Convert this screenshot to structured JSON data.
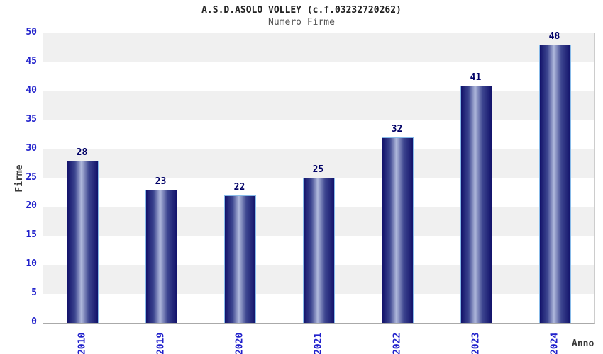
{
  "chart_data": {
    "type": "bar",
    "title": "A.S.D.ASOLO VOLLEY (c.f.03232720262)",
    "subtitle": "Numero Firme",
    "xlabel": "Anno",
    "ylabel": "Firme",
    "categories": [
      "2010",
      "2019",
      "2020",
      "2021",
      "2022",
      "2023",
      "2024"
    ],
    "values": [
      28,
      23,
      22,
      25,
      32,
      41,
      48
    ],
    "ylim": [
      0,
      50
    ],
    "yticks": [
      0,
      5,
      10,
      15,
      20,
      25,
      30,
      35,
      40,
      45,
      50
    ],
    "legend": "none",
    "grid": "alternating horizontal bands every 5 units",
    "colors": {
      "tick_label": "#2222cc",
      "category_label": "#2222cc",
      "value_label": "#000066",
      "title": "#222222",
      "subtitle": "#555555",
      "axis_title": "#3a3a3a",
      "band_gray": "#f0f0f0",
      "band_white": "#ffffff",
      "plot_border": "#cccccc",
      "bar_border": "#88bbe9",
      "bar_dark": "#12126a",
      "bar_light": "#b0b9dc"
    }
  }
}
